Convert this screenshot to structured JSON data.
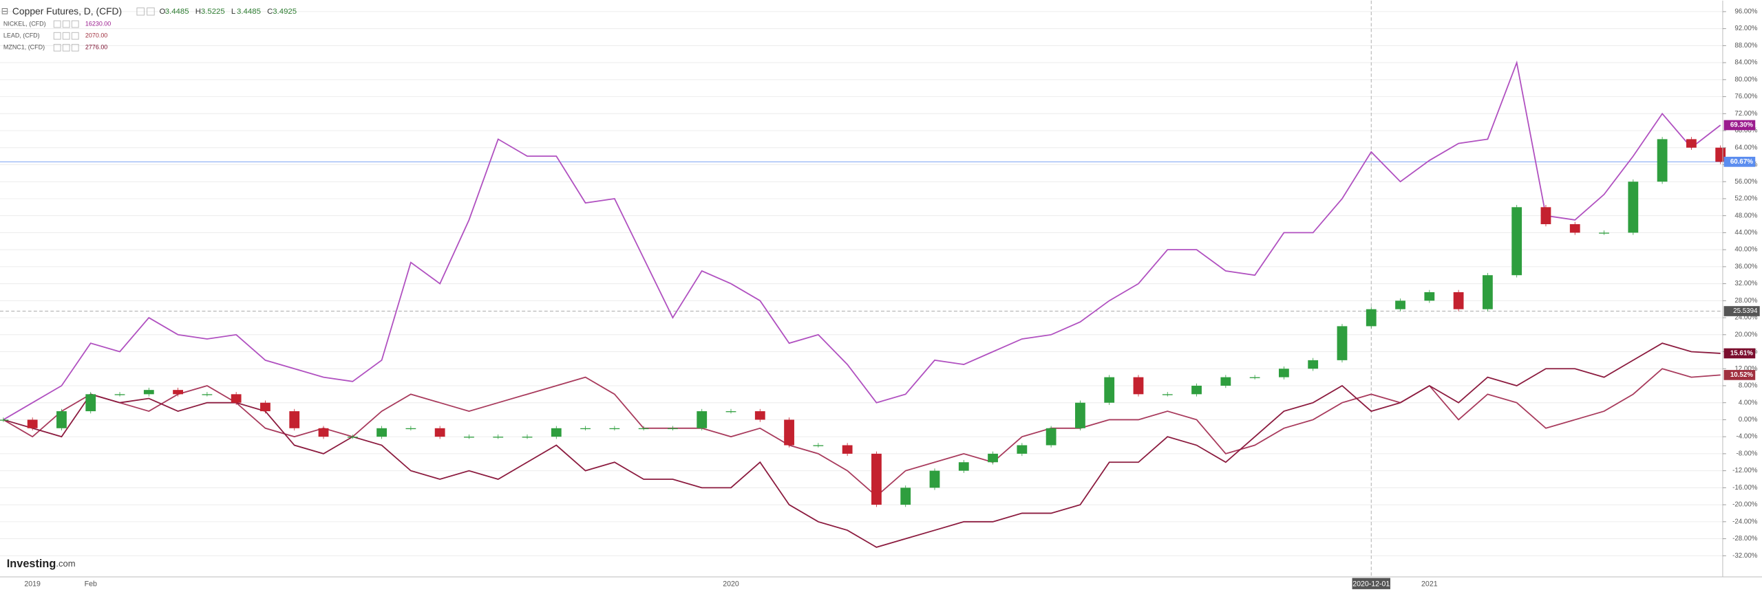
{
  "chart_data": {
    "type": "line",
    "title": "Copper Futures, D, (CFD)",
    "ohlc": [
      {
        "label": "O",
        "value": 3.4485
      },
      {
        "label": "H",
        "value": 3.5225
      },
      {
        "label": "L",
        "value": 3.4485
      },
      {
        "label": "C",
        "value": 3.4925
      }
    ],
    "brand": "Investing",
    "brand_suffix": ".com",
    "categories": [
      null,
      "2019",
      null,
      "Feb",
      null,
      null,
      null,
      null,
      null,
      null,
      null,
      null,
      null,
      null,
      null,
      null,
      null,
      null,
      null,
      null,
      null,
      null,
      null,
      null,
      null,
      "2020",
      null,
      null,
      null,
      null,
      null,
      null,
      null,
      null,
      null,
      null,
      null,
      null,
      null,
      null,
      null,
      null,
      null,
      null,
      null,
      null,
      null,
      "2020-12-01",
      null,
      "2021",
      null,
      null,
      null,
      null,
      null,
      null,
      null,
      null,
      null,
      null
    ],
    "series": [
      {
        "name": "NICKEL, (CFD)",
        "last_price": "16230.00",
        "color": "#b050c0",
        "label_color": "#9b1c8e",
        "end_label": "69.30%",
        "values": [
          0,
          4,
          8,
          18,
          16,
          24,
          20,
          19,
          20,
          14,
          12,
          10,
          9,
          14,
          37,
          32,
          47,
          66,
          62,
          62,
          51,
          52,
          38,
          24,
          35,
          32,
          28,
          18,
          20,
          13,
          4,
          6,
          14,
          13,
          16,
          19,
          20,
          23,
          28,
          32,
          40,
          40,
          35,
          34,
          44,
          44,
          52,
          63,
          56,
          61,
          65,
          66,
          84,
          48,
          47,
          53,
          62,
          72,
          64,
          69.3
        ]
      },
      {
        "name": "LEAD, (CFD)",
        "last_price": "2070.00",
        "color": "#a83a5c",
        "label_color": "#a0303f",
        "end_label": "10.52%",
        "values": [
          0,
          -4,
          2,
          6,
          4,
          2,
          6,
          8,
          4,
          -2,
          -4,
          -2,
          -4,
          2,
          6,
          4,
          2,
          4,
          6,
          8,
          10,
          6,
          -2,
          -2,
          -2,
          -4,
          -2,
          -6,
          -8,
          -12,
          -18,
          -12,
          -10,
          -8,
          -10,
          -4,
          -2,
          -2,
          0,
          0,
          2,
          0,
          -8,
          -6,
          -2,
          0,
          4,
          6,
          4,
          8,
          0,
          6,
          4,
          -2,
          0,
          2,
          6,
          12,
          10,
          10.52
        ]
      },
      {
        "name": "MZNC1, (CFD)",
        "last_price": "2776.00",
        "color": "#8b1a3e",
        "label_color": "#7b0e2e",
        "end_label": "15.61%",
        "values": [
          0,
          -2,
          -4,
          6,
          4,
          5,
          2,
          4,
          4,
          2,
          -6,
          -8,
          -4,
          -6,
          -12,
          -14,
          -12,
          -14,
          -10,
          -6,
          -12,
          -10,
          -14,
          -14,
          -16,
          -16,
          -10,
          -20,
          -24,
          -26,
          -30,
          -28,
          -26,
          -24,
          -24,
          -22,
          -22,
          -20,
          -10,
          -10,
          -4,
          -6,
          -10,
          -4,
          2,
          4,
          8,
          2,
          4,
          8,
          4,
          10,
          8,
          12,
          12,
          10,
          14,
          18,
          16,
          15.61
        ]
      },
      {
        "name": "Copper Futures",
        "kind": "candles",
        "up_color": "#2e9e3e",
        "down_color": "#c4212f",
        "label_color": "#5b8def",
        "end_label": "60.67%",
        "values": [
          0,
          -2,
          2,
          6,
          6,
          7,
          6,
          6,
          4,
          2,
          -2,
          -4,
          -4,
          -2,
          -2,
          -4,
          -4,
          -4,
          -4,
          -2,
          -2,
          -2,
          -2,
          -2,
          2,
          2,
          0,
          -6,
          -6,
          -8,
          -20,
          -16,
          -12,
          -10,
          -8,
          -6,
          -2,
          4,
          10,
          6,
          6,
          8,
          10,
          10,
          12,
          14,
          22,
          26,
          28,
          30,
          26,
          34,
          50,
          46,
          44,
          44,
          56,
          66,
          64,
          60.67
        ]
      }
    ],
    "crosshair": {
      "value": 25.5394,
      "category": 47
    },
    "ylim": [
      -36.7,
      98.6
    ],
    "yticks": [
      {
        "value": 96,
        "label": "96.00%"
      },
      {
        "value": 92,
        "label": "92.00%"
      },
      {
        "value": 88,
        "label": "88.00%"
      },
      {
        "value": 84,
        "label": "84.00%"
      },
      {
        "value": 80,
        "label": "80.00%"
      },
      {
        "value": 76,
        "label": "76.00%"
      },
      {
        "value": 72,
        "label": "72.00%"
      },
      {
        "value": 68,
        "label": "68.00%"
      },
      {
        "value": 64,
        "label": "64.00%"
      },
      {
        "value": 60,
        "label": "60.00%"
      },
      {
        "value": 56,
        "label": "56.00%"
      },
      {
        "value": 52,
        "label": "52.00%"
      },
      {
        "value": 48,
        "label": "48.00%"
      },
      {
        "value": 44,
        "label": "44.00%"
      },
      {
        "value": 40,
        "label": "40.00%"
      },
      {
        "value": 36,
        "label": "36.00%"
      },
      {
        "value": 32,
        "label": "32.00%"
      },
      {
        "value": 28,
        "label": "28.00%"
      },
      {
        "value": 24,
        "label": "24.00%"
      },
      {
        "value": 20,
        "label": "20.00%"
      },
      {
        "value": 16,
        "label": "16.00%"
      },
      {
        "value": 12,
        "label": "12.00%"
      },
      {
        "value": 8,
        "label": "8.00%"
      },
      {
        "value": 4,
        "label": "4.00%"
      },
      {
        "value": 0,
        "label": "0.00%"
      },
      {
        "value": -4,
        "label": "-4.00%"
      },
      {
        "value": -8,
        "label": "-8.00%"
      },
      {
        "value": -12,
        "label": "-12.00%"
      },
      {
        "value": -16,
        "label": "-16.00%"
      },
      {
        "value": -20,
        "label": "-20.00%"
      },
      {
        "value": -24,
        "label": "-24.00%"
      },
      {
        "value": -28,
        "label": "-28.00%"
      },
      {
        "value": -32,
        "label": "-32.00%"
      }
    ],
    "grid": true
  }
}
